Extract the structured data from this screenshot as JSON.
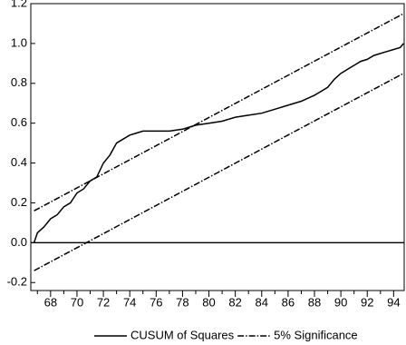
{
  "chart_data": {
    "type": "line",
    "xlim": [
      66.5,
      94.8
    ],
    "ylim": [
      -0.24,
      1.2
    ],
    "xticks": [
      68,
      70,
      72,
      74,
      76,
      78,
      80,
      82,
      84,
      86,
      88,
      90,
      92,
      94
    ],
    "xminorticks": [
      67,
      69,
      71,
      73,
      75,
      77,
      79,
      81,
      83,
      85,
      87,
      89,
      91,
      93
    ],
    "yticks": [
      -0.2,
      {
        "value": 0,
        "label": "0.0"
      },
      0.2,
      0.4,
      0.6,
      0.8,
      {
        "value": 1,
        "label": "1.0"
      },
      1.2
    ],
    "hline": 0,
    "series": [
      {
        "name": "CUSUM of Squares",
        "color": "#000000",
        "dash": "none",
        "x": [
          66.75,
          67,
          67.5,
          68,
          68.5,
          69,
          69.5,
          70,
          70.5,
          71,
          71.5,
          72,
          72.5,
          73,
          73.5,
          74,
          74.5,
          75,
          76,
          77,
          78,
          78.5,
          79,
          80,
          81,
          82,
          83,
          84,
          85,
          86,
          87,
          88,
          88.5,
          89,
          89.5,
          90,
          90.5,
          91,
          91.5,
          92,
          92.5,
          93,
          93.5,
          94,
          94.5,
          94.75
        ],
        "values": [
          0.0,
          0.05,
          0.08,
          0.12,
          0.14,
          0.18,
          0.2,
          0.25,
          0.27,
          0.31,
          0.33,
          0.4,
          0.44,
          0.5,
          0.52,
          0.54,
          0.55,
          0.56,
          0.56,
          0.56,
          0.57,
          0.58,
          0.59,
          0.6,
          0.61,
          0.63,
          0.64,
          0.65,
          0.67,
          0.69,
          0.71,
          0.74,
          0.76,
          0.78,
          0.82,
          0.85,
          0.87,
          0.89,
          0.91,
          0.92,
          0.94,
          0.95,
          0.96,
          0.97,
          0.98,
          1.0
        ]
      },
      {
        "name": "5% Significance",
        "color": "#000000",
        "dash": "7,2,1.5,2",
        "x": [
          66.75,
          94.75
        ],
        "values": [
          0.16,
          1.15
        ]
      },
      {
        "color": "#000000",
        "dash": "7,2,1.5,2",
        "x": [
          66.75,
          94.75
        ],
        "values": [
          -0.14,
          0.85
        ]
      }
    ]
  }
}
